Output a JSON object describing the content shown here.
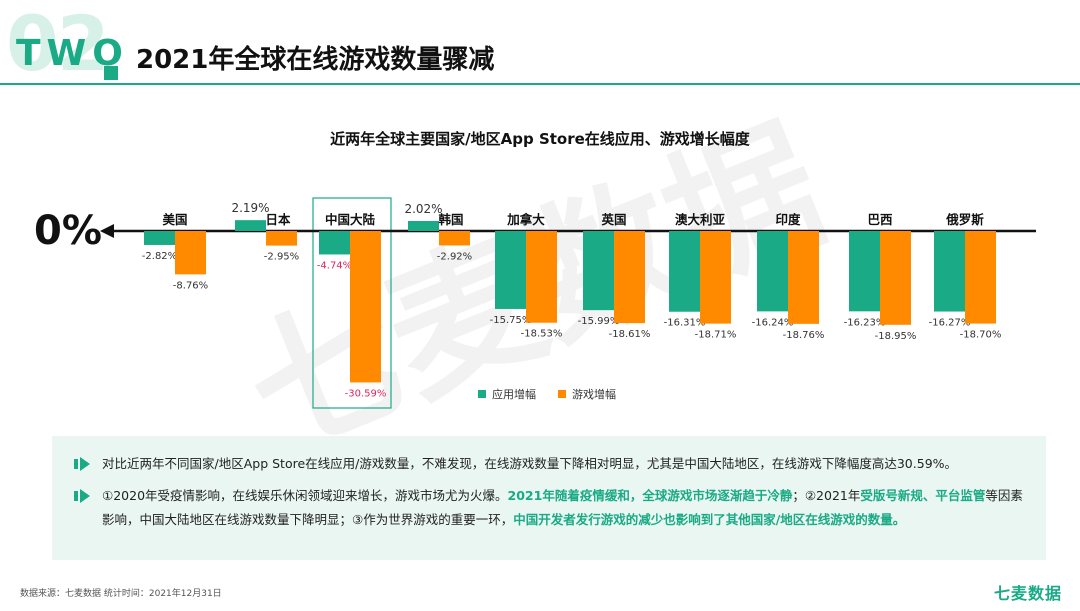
{
  "header": {
    "ghost_number": "02",
    "section_word": "TWO",
    "title": "2021年全球在线游戏数量骤减"
  },
  "watermark": "七麦数据",
  "chart_data": {
    "type": "bar",
    "title": "近两年全球主要国家/地区App Store在线应用、游戏增长幅度",
    "zero_label": "0%",
    "categories": [
      "美国",
      "日本",
      "中国大陆",
      "韩国",
      "加拿大",
      "英国",
      "澳大利亚",
      "印度",
      "巴西",
      "俄罗斯"
    ],
    "series": [
      {
        "name": "应用增幅",
        "color": "#1aaa85",
        "values": [
          -2.82,
          2.19,
          -4.74,
          2.02,
          -15.75,
          -15.99,
          -16.31,
          -16.24,
          -16.23,
          -16.27
        ],
        "labels": [
          "-2.82%",
          "2.19%",
          "-4.74%",
          "2.02%",
          "-15.75%",
          "-15.99%",
          "-16.31%",
          "-16.24%",
          "-16.23%",
          "-16.27%"
        ]
      },
      {
        "name": "游戏增幅",
        "color": "#ff8a00",
        "values": [
          -8.76,
          -2.95,
          -30.59,
          -2.92,
          -18.53,
          -18.61,
          -18.71,
          -18.76,
          -18.95,
          -18.7
        ],
        "labels": [
          "-8.76%",
          "-2.95%",
          "-30.59%",
          "-2.92%",
          "-18.53%",
          "-18.61%",
          "-18.71%",
          "-18.76%",
          "-18.95%",
          "-18.70%"
        ]
      }
    ],
    "highlight_category": "中国大陆",
    "highlight_color": "#e0245e",
    "legend_position": "bottom",
    "grid": false
  },
  "info": {
    "line1": "对比近两年不同国家/地区App Store在线应用/游戏数量，不难发现，在线游戏数量下降相对明显，尤其是中国大陆地区，在线游戏下降幅度高达30.59%。",
    "line2_a": "①2020年受疫情影响，在线娱乐休闲领域迎来增长，游戏市场尤为火爆。",
    "line2_b": "2021年随着疫情缓和，全球游戏市场逐渐趋于冷静",
    "line2_c": "；②2021年",
    "line2_d": "受版号新规、平台监管",
    "line2_e": "等因素影响，中国大陆地区在线游戏数量下降明显；③作为世界游戏的重要一环，",
    "line2_f": "中国开发者发行游戏的减少也影响到了其他国家/地区在线游戏的数量。"
  },
  "footer": {
    "source": "数据来源：七麦数据  统计时间：2021年12月31日",
    "brand": "七麦数据"
  }
}
